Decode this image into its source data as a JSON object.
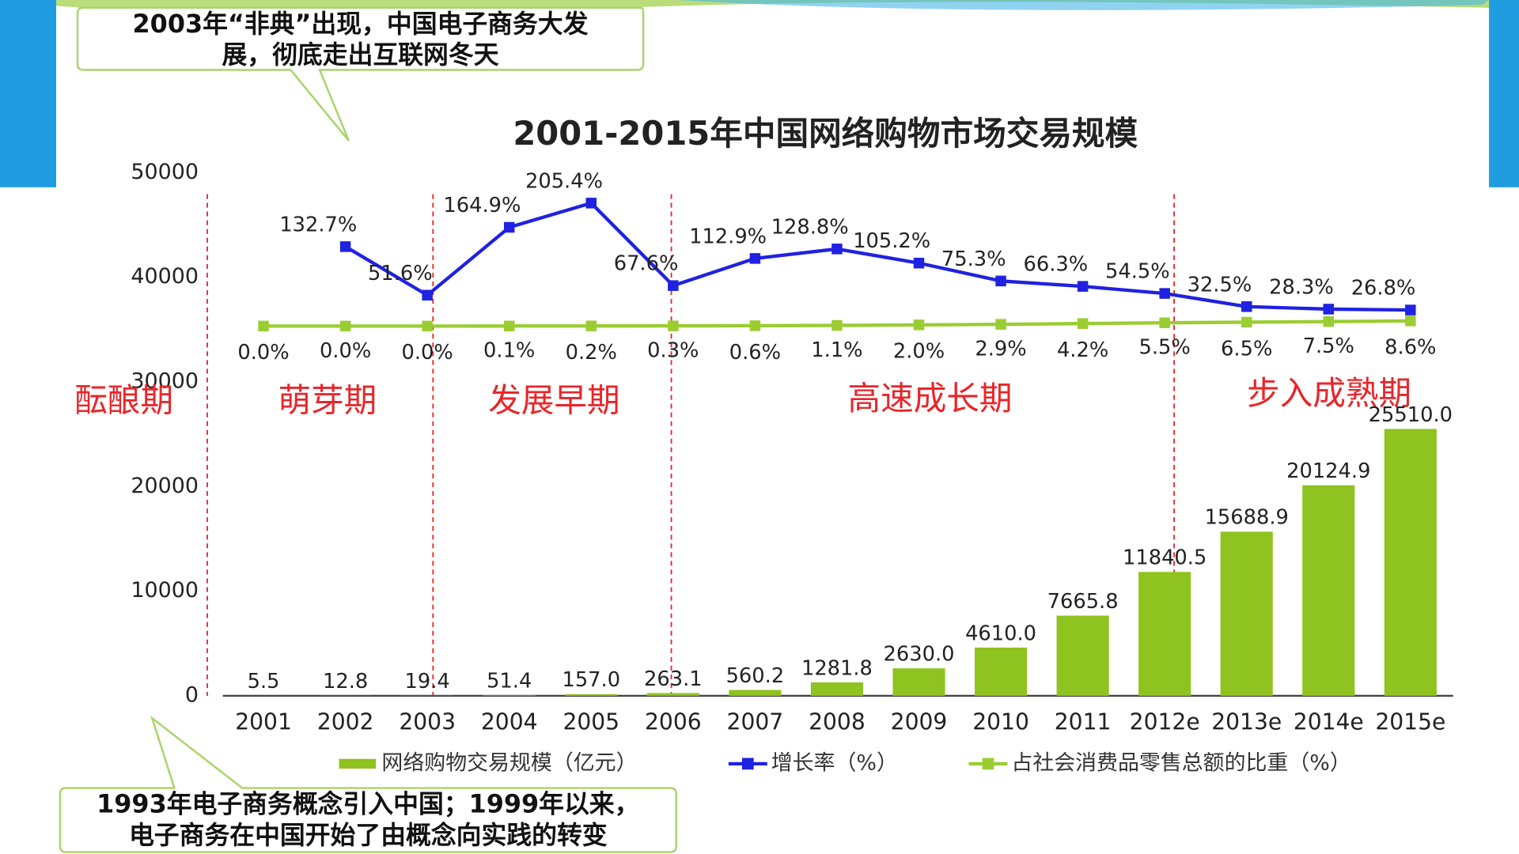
{
  "chart_data": {
    "type": "bar",
    "title": "2001-2015年中国网络购物市场交易规模",
    "categories": [
      "2001",
      "2002",
      "2003",
      "2004",
      "2005",
      "2006",
      "2007",
      "2008",
      "2009",
      "2010",
      "2011",
      "2012e",
      "2013e",
      "2014e",
      "2015e"
    ],
    "ylim": [
      0,
      50000
    ],
    "yticks": [
      0,
      10000,
      20000,
      30000,
      40000,
      50000
    ],
    "series": [
      {
        "name": "网络购物交易规模（亿元）",
        "type": "bar",
        "color": "#8fc31f",
        "values": [
          5.5,
          12.8,
          19.4,
          51.4,
          157.0,
          263.1,
          560.2,
          1281.8,
          2630.0,
          4610.0,
          7665.8,
          11840.5,
          15688.9,
          20124.9,
          25510.0
        ],
        "value_labels": [
          "5.5",
          "12.8",
          "19.4",
          "51.4",
          "157.0",
          "263.1",
          "560.2",
          "1281.8",
          "2630.0",
          "4610.0",
          "7665.8",
          "11840.5",
          "15688.9",
          "20124.9",
          "25510.0"
        ]
      },
      {
        "name": "增长率（%）",
        "type": "line",
        "color": "#1f22e0",
        "values": [
          null,
          132.7,
          51.6,
          164.9,
          205.4,
          67.6,
          112.9,
          128.8,
          105.2,
          75.3,
          66.3,
          54.5,
          32.5,
          28.3,
          26.8
        ],
        "value_labels": [
          null,
          "132.7%",
          "51.6%",
          "164.9%",
          "205.4%",
          "67.6%",
          "112.9%",
          "128.8%",
          "105.2%",
          "75.3%",
          "66.3%",
          "54.5%",
          "32.5%",
          "28.3%",
          "26.8%"
        ]
      },
      {
        "name": "占社会消费品零售总额的比重（%）",
        "type": "line",
        "color": "#9acd32",
        "values": [
          0.0,
          0.0,
          0.0,
          0.1,
          0.2,
          0.3,
          0.6,
          1.1,
          2.0,
          2.9,
          4.2,
          5.5,
          6.5,
          7.5,
          8.6
        ],
        "value_labels": [
          "0.0%",
          "0.0%",
          "0.0%",
          "0.1%",
          "0.2%",
          "0.3%",
          "0.6%",
          "1.1%",
          "2.0%",
          "2.9%",
          "4.2%",
          "5.5%",
          "6.5%",
          "7.5%",
          "8.6%"
        ]
      }
    ],
    "phases": [
      "酝酿期",
      "萌芽期",
      "发展早期",
      "高速成长期",
      "步入成熟期"
    ],
    "annotations": [
      {
        "lines": [
          "2003年“非典”出现，中国电子商务大发",
          "展，彻底走出互联网冬天"
        ]
      },
      {
        "lines": [
          "1993年电子商务概念引入中国；1999年以来，",
          "电子商务在中国开始了由概念向实践的转变"
        ]
      }
    ]
  }
}
